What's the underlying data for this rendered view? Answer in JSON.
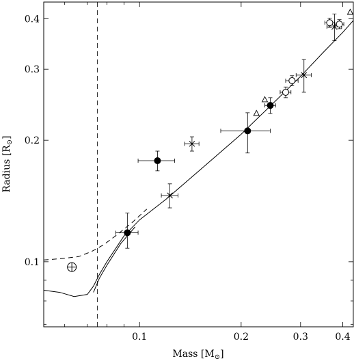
{
  "chart_data": {
    "type": "scatter",
    "xlabel": "Mass [M",
    "xlabel_sub": "⊙",
    "xlabel_end": "]",
    "ylabel": "Radius [R",
    "ylabel_sub": "⊙",
    "ylabel_end": "]",
    "xscale": "log",
    "yscale": "log",
    "xlim": [
      0.052,
      0.43
    ],
    "ylim": [
      0.069,
      0.44
    ],
    "x_ticks": [
      {
        "value": 0.1,
        "label": "0.1"
      },
      {
        "value": 0.2,
        "label": "0.2"
      },
      {
        "value": 0.3,
        "label": "0.3"
      },
      {
        "value": 0.4,
        "label": "0.4"
      }
    ],
    "y_ticks": [
      {
        "value": 0.1,
        "label": "0.1"
      },
      {
        "value": 0.2,
        "label": "0.2"
      },
      {
        "value": 0.3,
        "label": "0.3"
      },
      {
        "value": 0.4,
        "label": "0.4"
      }
    ],
    "grid": false,
    "reference_line": {
      "style": "dashed",
      "x": 0.075
    },
    "series": [
      {
        "marker": "filled-circle",
        "points": [
          {
            "x": 0.092,
            "y": 0.118,
            "xerr": 0.007,
            "yerr_lo": 0.01,
            "yerr_hi": 0.014
          },
          {
            "x": 0.113,
            "y": 0.178,
            "xerr": 0.014,
            "yerr_lo": 0.01,
            "yerr_hi": 0.01
          },
          {
            "x": 0.209,
            "y": 0.211,
            "xerr": 0.035,
            "yerr_lo": 0.025,
            "yerr_hi": 0.023
          },
          {
            "x": 0.244,
            "y": 0.244,
            "xerr": 0.009,
            "yerr_lo": 0.011,
            "yerr_hi": 0.011
          }
        ]
      },
      {
        "marker": "cross",
        "points": [
          {
            "x": 0.123,
            "y": 0.146,
            "xerr": 0.007,
            "yerr_lo": 0.01,
            "yerr_hi": 0.01
          },
          {
            "x": 0.143,
            "y": 0.196,
            "xerr": 0.007,
            "yerr_lo": 0.008,
            "yerr_hi": 0.008
          },
          {
            "x": 0.307,
            "y": 0.29,
            "xerr": 0.016,
            "yerr_lo": 0.027,
            "yerr_hi": 0.027
          },
          {
            "x": 0.378,
            "y": 0.382,
            "xerr": 0.019,
            "yerr_lo": 0.029,
            "yerr_hi": 0.029
          }
        ]
      },
      {
        "marker": "open-circle",
        "points": [
          {
            "x": 0.271,
            "y": 0.263,
            "xerr": 0.01,
            "yerr_lo": 0.008,
            "yerr_hi": 0.008
          },
          {
            "x": 0.283,
            "y": 0.281,
            "xerr": 0.012,
            "yerr_lo": 0.008,
            "yerr_hi": 0.008
          },
          {
            "x": 0.366,
            "y": 0.391,
            "xerr": 0.012,
            "yerr_lo": 0.01,
            "yerr_hi": 0.01
          },
          {
            "x": 0.391,
            "y": 0.388,
            "xerr": 0.012,
            "yerr_lo": 0.01,
            "yerr_hi": 0.01
          }
        ]
      },
      {
        "marker": "open-triangle",
        "points": [
          {
            "x": 0.222,
            "y": 0.233
          },
          {
            "x": 0.235,
            "y": 0.252
          },
          {
            "x": 0.421,
            "y": 0.415
          }
        ]
      },
      {
        "marker": "circle-plus",
        "points": [
          {
            "x": 0.063,
            "y": 0.097
          }
        ]
      }
    ],
    "curves": [
      {
        "style": "solid",
        "points": [
          [
            0.052,
            0.085
          ],
          [
            0.058,
            0.084
          ],
          [
            0.064,
            0.082
          ],
          [
            0.07,
            0.083
          ],
          [
            0.073,
            0.087
          ],
          [
            0.076,
            0.093
          ],
          [
            0.08,
            0.1
          ],
          [
            0.09,
            0.116
          ],
          [
            0.1,
            0.127
          ],
          [
            0.12,
            0.143
          ],
          [
            0.15,
            0.168
          ],
          [
            0.2,
            0.207
          ],
          [
            0.25,
            0.248
          ],
          [
            0.3,
            0.288
          ],
          [
            0.35,
            0.33
          ],
          [
            0.4,
            0.37
          ],
          [
            0.43,
            0.396
          ]
        ]
      },
      {
        "style": "solid",
        "points": [
          [
            0.073,
            0.084
          ],
          [
            0.076,
            0.091
          ],
          [
            0.08,
            0.098
          ],
          [
            0.088,
            0.111
          ],
          [
            0.097,
            0.122
          ]
        ]
      },
      {
        "style": "dashed",
        "points": [
          [
            0.052,
            0.101
          ],
          [
            0.06,
            0.102
          ],
          [
            0.066,
            0.103
          ],
          [
            0.072,
            0.106
          ],
          [
            0.078,
            0.11
          ],
          [
            0.085,
            0.116
          ],
          [
            0.095,
            0.125
          ],
          [
            0.105,
            0.135
          ]
        ]
      }
    ]
  }
}
